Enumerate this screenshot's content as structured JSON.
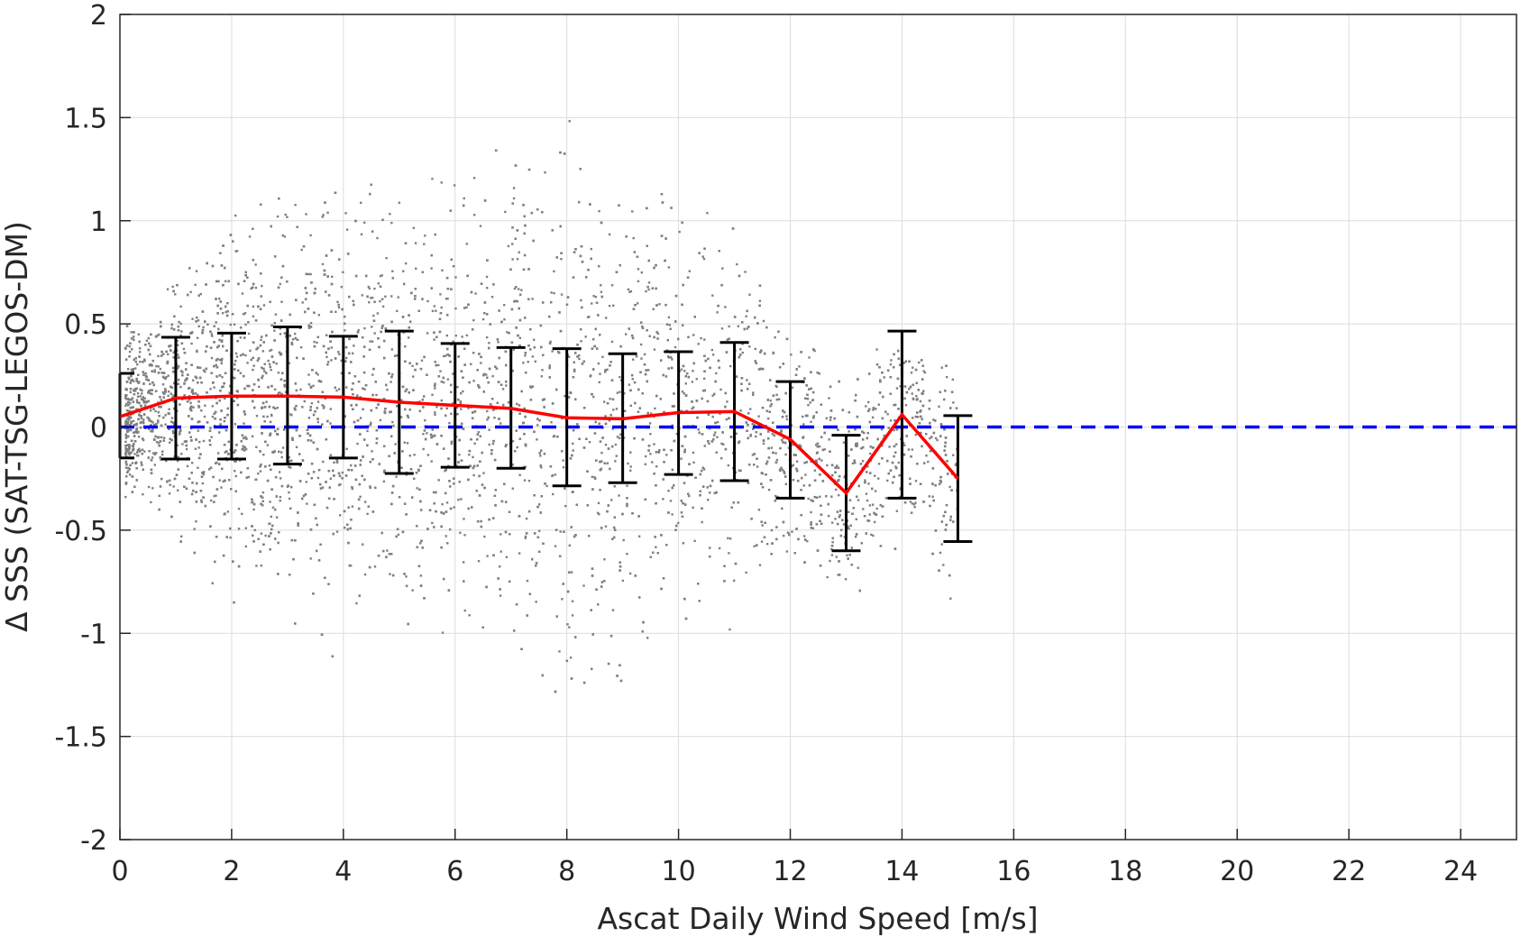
{
  "chart_data": {
    "type": "scatter",
    "title": "",
    "xlabel": "Ascat Daily Wind Speed [m/s]",
    "ylabel": "Δ SSS (SAT-TSG-LEGOS-DM)",
    "xlim": [
      0,
      25
    ],
    "ylim": [
      -2,
      2
    ],
    "xticks": [
      0,
      2,
      4,
      6,
      8,
      10,
      12,
      14,
      16,
      18,
      20,
      22,
      24
    ],
    "yticks": [
      -2,
      -1.5,
      -1,
      -0.5,
      0,
      0.5,
      1,
      1.5,
      2
    ],
    "ytick_labels": [
      "-2",
      "-1.5",
      "-1",
      "-0.5",
      "0",
      "0.5",
      "1",
      "1.5",
      "2"
    ],
    "grid": true,
    "colors": {
      "scatter": "#808080",
      "mean_line": "#ff0000",
      "zero_line": "#0000ff",
      "error_bars": "#000000"
    },
    "scatter_cloud": {
      "description": "dense grey scatter of daily match-ups",
      "x_range": [
        0.1,
        15
      ],
      "envelope": [
        {
          "x": 0.5,
          "low": -0.35,
          "high": 0.55
        },
        {
          "x": 2,
          "low": -0.9,
          "high": 1.05
        },
        {
          "x": 4,
          "low": -1.2,
          "high": 1.2
        },
        {
          "x": 6,
          "low": -1.05,
          "high": 1.25
        },
        {
          "x": 8,
          "low": -1.4,
          "high": 1.5
        },
        {
          "x": 10,
          "low": -1.2,
          "high": 1.1
        },
        {
          "x": 11,
          "low": -1.0,
          "high": 1.0
        },
        {
          "x": 12,
          "low": -0.6,
          "high": 0.7
        },
        {
          "x": 13,
          "low": -0.85,
          "high": 0.35
        },
        {
          "x": 14,
          "low": -1.0,
          "high": 0.4
        },
        {
          "x": 14.6,
          "low": -1.1,
          "high": 0.3
        }
      ]
    },
    "series": [
      {
        "name": "",
        "kind": "mean_with_std",
        "x": [
          0,
          1,
          2,
          3,
          4,
          5,
          6,
          7,
          8,
          9,
          10,
          11,
          12,
          13,
          14,
          15
        ],
        "y": [
          0.05,
          0.14,
          0.15,
          0.15,
          0.145,
          0.12,
          0.105,
          0.09,
          0.045,
          0.04,
          0.07,
          0.075,
          -0.06,
          -0.32,
          0.06,
          -0.25
        ],
        "lower": [
          -0.15,
          -0.155,
          -0.155,
          -0.18,
          -0.15,
          -0.225,
          -0.195,
          -0.2,
          -0.285,
          -0.27,
          -0.23,
          -0.26,
          -0.345,
          -0.6,
          -0.345,
          -0.555
        ],
        "upper": [
          0.26,
          0.435,
          0.455,
          0.485,
          0.44,
          0.465,
          0.405,
          0.385,
          0.38,
          0.355,
          0.365,
          0.41,
          0.22,
          -0.04,
          0.465,
          0.055
        ]
      },
      {
        "name": "",
        "kind": "zero_reference",
        "x": [
          0,
          25
        ],
        "y": [
          0,
          0
        ]
      }
    ]
  }
}
